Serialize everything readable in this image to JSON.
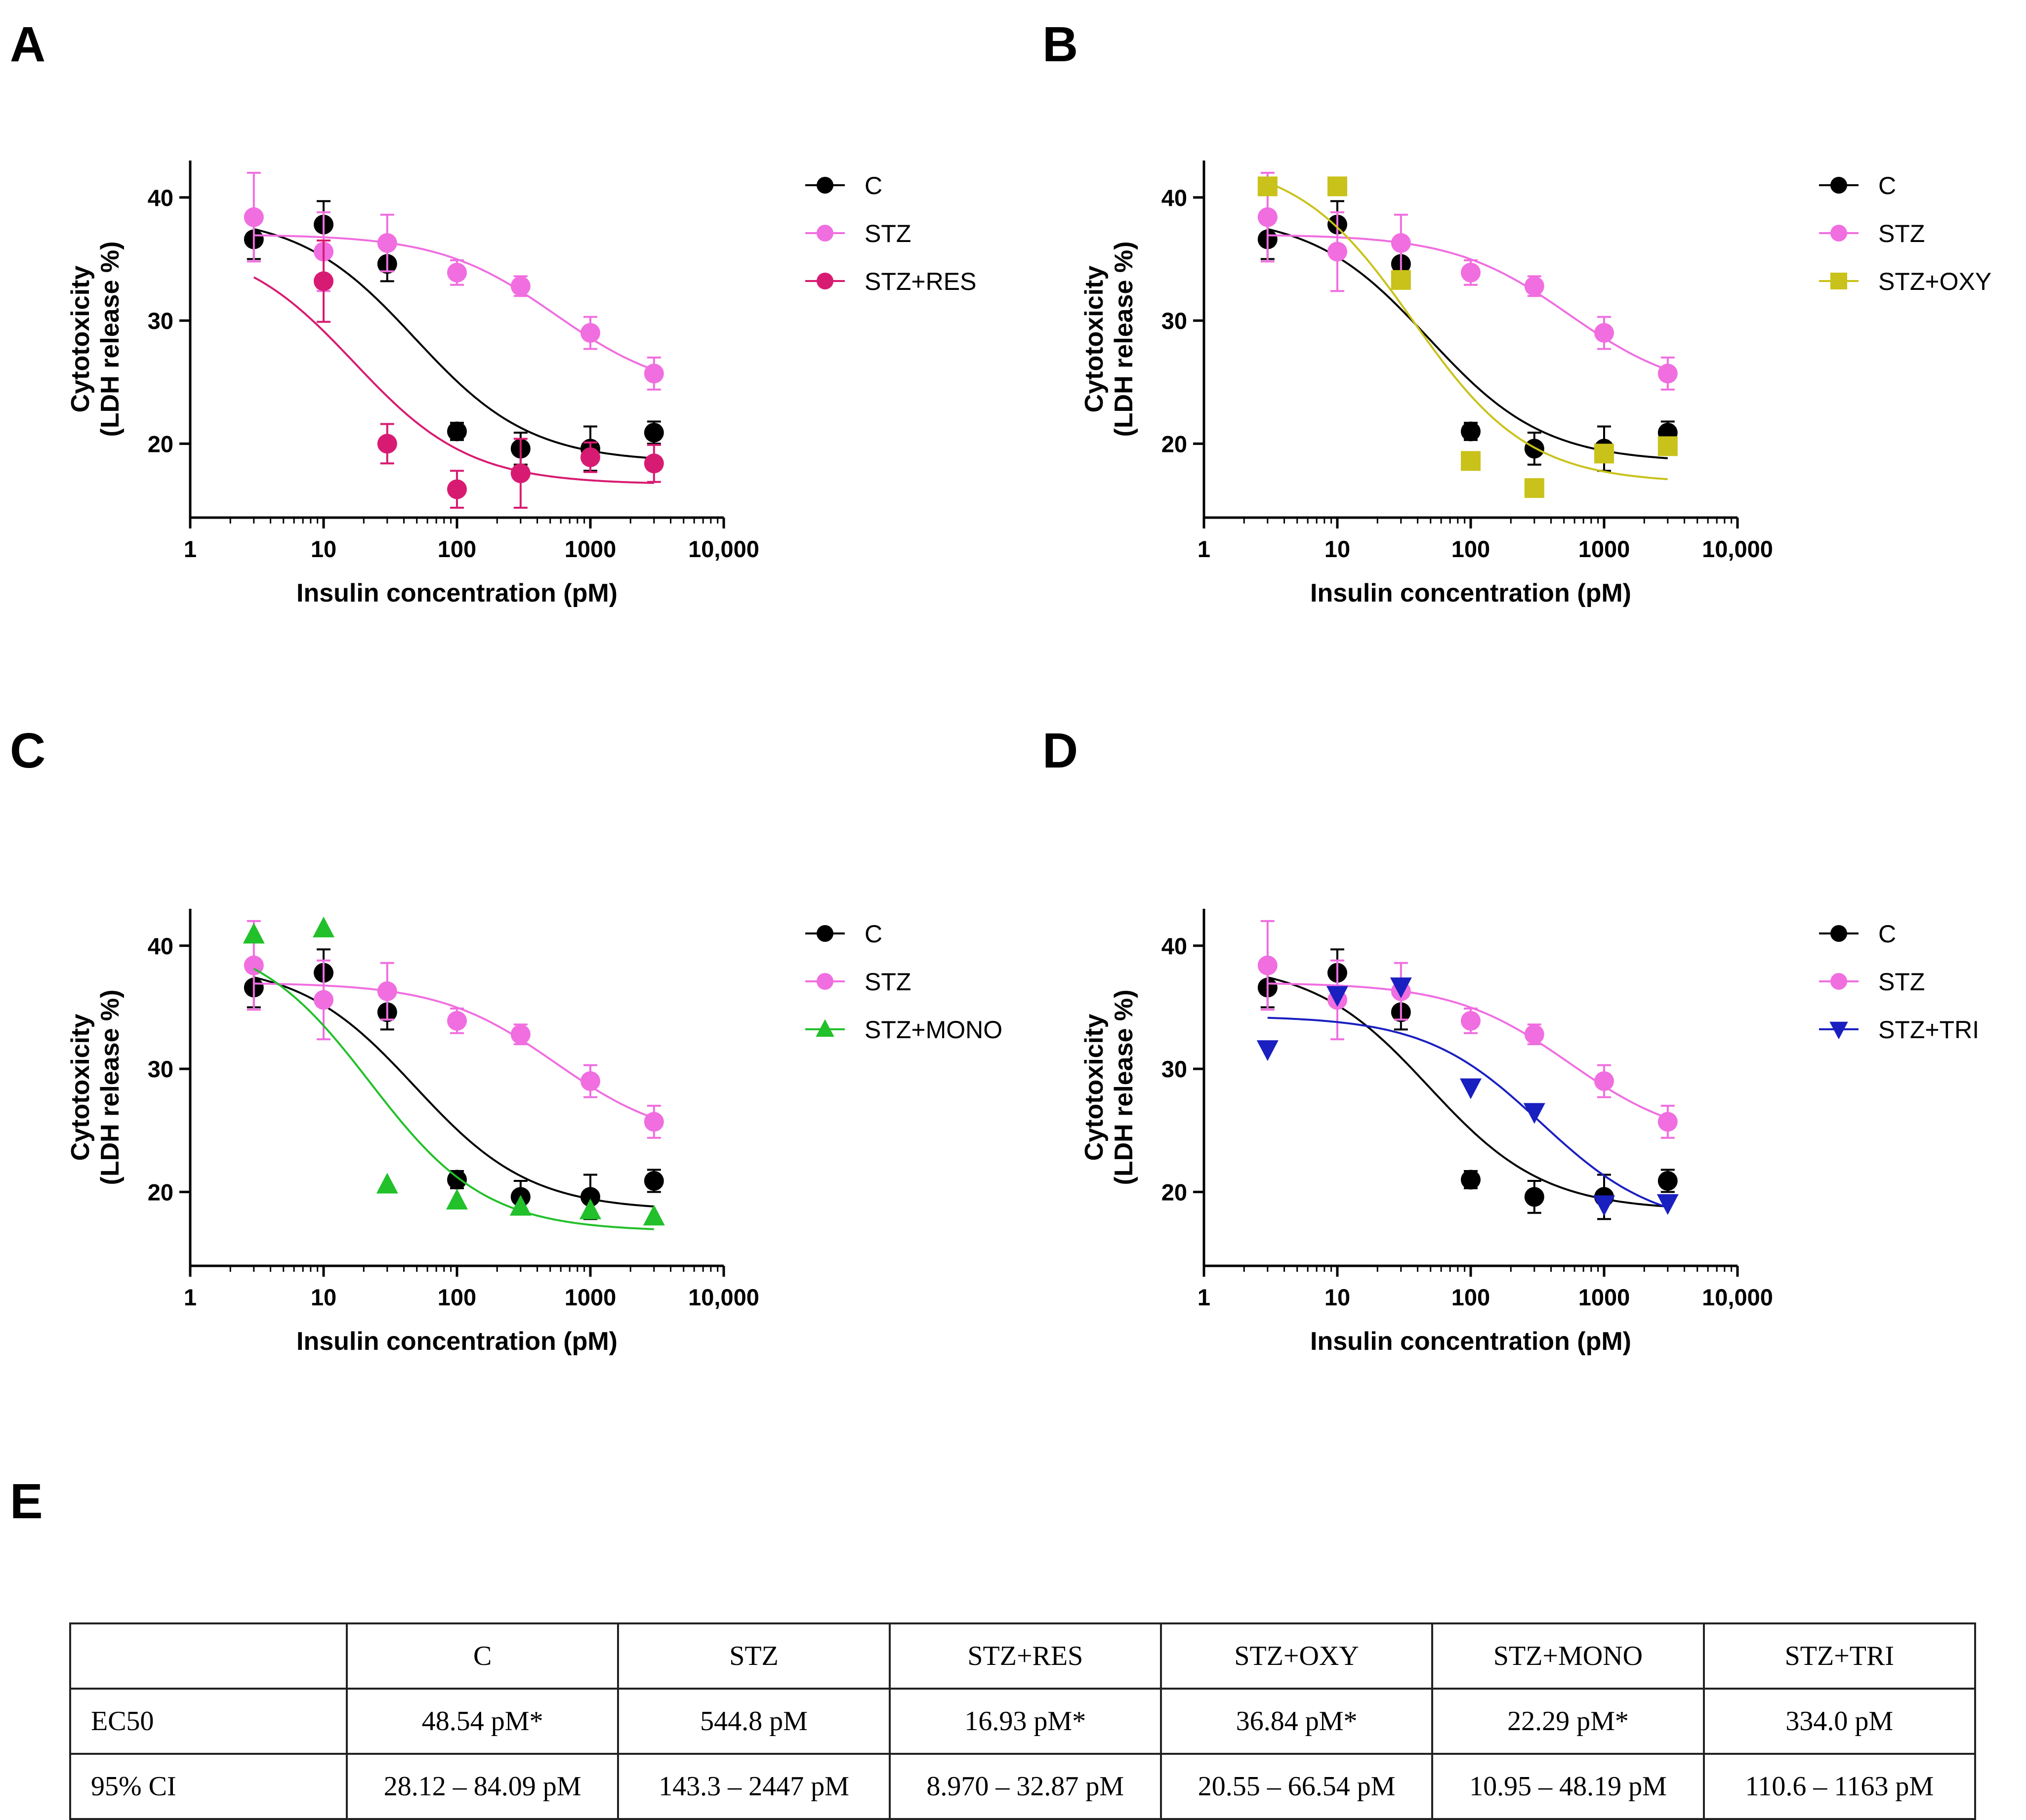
{
  "panels": [
    {
      "label": "A",
      "ylabel": [
        "Cytotoxicity",
        "(LDH release %)"
      ],
      "xlabel": "Insulin concentration (pM)",
      "legend": [
        {
          "name": "C",
          "color": "#000000",
          "marker": "circle"
        },
        {
          "name": "STZ",
          "color": "#f06ee0",
          "marker": "circle"
        },
        {
          "name": "STZ+RES",
          "color": "#d81b72",
          "marker": "circle"
        }
      ]
    },
    {
      "label": "B",
      "ylabel": [
        "Cytotoxicity",
        "(LDH release %)"
      ],
      "xlabel": "Insulin concentration (pM)",
      "legend": [
        {
          "name": "C",
          "color": "#000000",
          "marker": "circle"
        },
        {
          "name": "STZ",
          "color": "#f06ee0",
          "marker": "circle"
        },
        {
          "name": "STZ+OXY",
          "color": "#c9c21a",
          "marker": "square"
        }
      ]
    },
    {
      "label": "C",
      "ylabel": [
        "Cytotoxicity",
        "(LDH release %)"
      ],
      "xlabel": "Insulin concentration (pM)",
      "legend": [
        {
          "name": "C",
          "color": "#000000",
          "marker": "circle"
        },
        {
          "name": "STZ",
          "color": "#f06ee0",
          "marker": "circle"
        },
        {
          "name": "STZ+MONO",
          "color": "#22c02a",
          "marker": "triangle-up"
        }
      ]
    },
    {
      "label": "D",
      "ylabel": [
        "Cytotoxicity",
        "(LDH release %)"
      ],
      "xlabel": "Insulin concentration (pM)",
      "legend": [
        {
          "name": "C",
          "color": "#000000",
          "marker": "circle"
        },
        {
          "name": "STZ",
          "color": "#f06ee0",
          "marker": "circle"
        },
        {
          "name": "STZ+TRI",
          "color": "#1a1fc0",
          "marker": "triangle-down"
        }
      ]
    }
  ],
  "chart_data": [
    {
      "panel": "A",
      "type": "scatter",
      "x_scale": "log",
      "xlim": [
        1,
        10000
      ],
      "ylim": [
        14,
        43
      ],
      "xticks": [
        1,
        10,
        100,
        1000,
        10000
      ],
      "xtick_labels": [
        "1",
        "10",
        "100",
        "1000",
        "10,000"
      ],
      "yticks": [
        20,
        30,
        40
      ],
      "ytick_labels": [
        "20",
        "30",
        "40"
      ],
      "series": [
        {
          "name": "C",
          "x": [
            3,
            10,
            30,
            100,
            300,
            1000,
            3000
          ],
          "y": [
            36.6,
            37.8,
            34.6,
            21.0,
            19.6,
            19.6,
            20.9
          ],
          "err": [
            1.6,
            1.9,
            1.4,
            0.7,
            1.3,
            1.8,
            0.9
          ],
          "fit": {
            "top": 38.6,
            "bottom": 18.5,
            "ec50": 48.54
          }
        },
        {
          "name": "STZ",
          "x": [
            3,
            10,
            30,
            100,
            300,
            1000,
            3000
          ],
          "y": [
            38.4,
            35.6,
            36.3,
            33.9,
            32.8,
            29.0,
            25.7
          ],
          "err": [
            3.6,
            3.2,
            2.3,
            1.0,
            0.8,
            1.3,
            1.3
          ],
          "fit": {
            "top": 37.0,
            "bottom": 24.0,
            "ec50": 544.8
          }
        },
        {
          "name": "STZ+RES",
          "x": [
            3,
            10,
            30,
            100,
            300,
            1000,
            3000
          ],
          "y": [
            null,
            33.2,
            20.0,
            16.3,
            17.6,
            18.9,
            18.4
          ],
          "err": [
            0,
            3.3,
            1.6,
            1.5,
            2.8,
            1.2,
            1.5
          ],
          "fit": {
            "top": 36.5,
            "bottom": 16.7,
            "ec50": 16.93
          }
        }
      ]
    },
    {
      "panel": "B",
      "type": "scatter",
      "x_scale": "log",
      "xlim": [
        1,
        10000
      ],
      "ylim": [
        14,
        43
      ],
      "xticks": [
        1,
        10,
        100,
        1000,
        10000
      ],
      "xtick_labels": [
        "1",
        "10",
        "100",
        "1000",
        "10,000"
      ],
      "yticks": [
        20,
        30,
        40
      ],
      "ytick_labels": [
        "20",
        "30",
        "40"
      ],
      "series": [
        {
          "name": "C",
          "x": [
            3,
            10,
            30,
            100,
            300,
            1000,
            3000
          ],
          "y": [
            36.6,
            37.8,
            34.6,
            21.0,
            19.6,
            19.6,
            20.9
          ],
          "err": [
            1.6,
            1.9,
            1.4,
            0.7,
            1.3,
            1.8,
            0.9
          ],
          "fit": {
            "top": 38.6,
            "bottom": 18.5,
            "ec50": 48.54
          }
        },
        {
          "name": "STZ",
          "x": [
            3,
            10,
            30,
            100,
            300,
            1000,
            3000
          ],
          "y": [
            38.4,
            35.6,
            36.3,
            33.9,
            32.8,
            29.0,
            25.7
          ],
          "err": [
            3.6,
            3.2,
            2.3,
            1.0,
            0.8,
            1.3,
            1.3
          ],
          "fit": {
            "top": 37.0,
            "bottom": 24.0,
            "ec50": 544.8
          }
        },
        {
          "name": "STZ+OXY",
          "x": [
            3,
            10,
            30,
            100,
            300,
            1000,
            3000
          ],
          "y": [
            40.9,
            40.9,
            33.3,
            18.6,
            16.4,
            19.2,
            19.8
          ],
          "err": [
            0,
            0,
            0,
            0,
            0,
            0,
            0
          ],
          "fit": {
            "top": 43.2,
            "bottom": 16.8,
            "ec50": 36.84
          }
        }
      ]
    },
    {
      "panel": "C",
      "type": "scatter",
      "x_scale": "log",
      "xlim": [
        1,
        10000
      ],
      "ylim": [
        14,
        43
      ],
      "xticks": [
        1,
        10,
        100,
        1000,
        10000
      ],
      "xtick_labels": [
        "1",
        "10",
        "100",
        "1000",
        "10,000"
      ],
      "yticks": [
        20,
        30,
        40
      ],
      "ytick_labels": [
        "20",
        "30",
        "40"
      ],
      "series": [
        {
          "name": "C",
          "x": [
            3,
            10,
            30,
            100,
            300,
            1000,
            3000
          ],
          "y": [
            36.6,
            37.8,
            34.6,
            21.0,
            19.6,
            19.6,
            20.9
          ],
          "err": [
            1.6,
            1.9,
            1.4,
            0.7,
            1.3,
            1.8,
            0.9
          ],
          "fit": {
            "top": 38.6,
            "bottom": 18.5,
            "ec50": 48.54
          }
        },
        {
          "name": "STZ",
          "x": [
            3,
            10,
            30,
            100,
            300,
            1000,
            3000
          ],
          "y": [
            38.4,
            35.6,
            36.3,
            33.9,
            32.8,
            29.0,
            25.7
          ],
          "err": [
            3.6,
            3.2,
            2.3,
            1.0,
            0.8,
            1.3,
            1.3
          ],
          "fit": {
            "top": 37.0,
            "bottom": 24.0,
            "ec50": 544.8
          }
        },
        {
          "name": "STZ+MONO",
          "x": [
            3,
            10,
            30,
            100,
            300,
            1000,
            3000
          ],
          "y": [
            40.9,
            41.4,
            20.6,
            19.3,
            18.8,
            18.5,
            18.0
          ],
          "err": [
            0,
            0,
            0,
            0,
            0,
            0,
            0
          ],
          "fit": {
            "top": 41.0,
            "bottom": 16.8,
            "ec50": 22.29
          }
        }
      ]
    },
    {
      "panel": "D",
      "type": "scatter",
      "x_scale": "log",
      "xlim": [
        1,
        10000
      ],
      "ylim": [
        14,
        43
      ],
      "xticks": [
        1,
        10,
        100,
        1000,
        10000
      ],
      "xtick_labels": [
        "1",
        "10",
        "100",
        "1000",
        "10,000"
      ],
      "yticks": [
        20,
        30,
        40
      ],
      "ytick_labels": [
        "20",
        "30",
        "40"
      ],
      "series": [
        {
          "name": "C",
          "x": [
            3,
            10,
            30,
            100,
            300,
            1000,
            3000
          ],
          "y": [
            36.6,
            37.8,
            34.6,
            21.0,
            19.6,
            19.6,
            20.9
          ],
          "err": [
            1.6,
            1.9,
            1.4,
            0.7,
            1.3,
            1.8,
            0.9
          ],
          "fit": {
            "top": 38.6,
            "bottom": 18.5,
            "ec50": 48.54
          }
        },
        {
          "name": "STZ",
          "x": [
            3,
            10,
            30,
            100,
            300,
            1000,
            3000
          ],
          "y": [
            38.4,
            35.6,
            36.3,
            33.9,
            32.8,
            29.0,
            25.7
          ],
          "err": [
            3.6,
            3.2,
            2.3,
            1.0,
            0.8,
            1.3,
            1.3
          ],
          "fit": {
            "top": 37.0,
            "bottom": 24.0,
            "ec50": 544.8
          }
        },
        {
          "name": "STZ+TRI",
          "x": [
            3,
            10,
            30,
            100,
            300,
            1000,
            3000
          ],
          "y": [
            31.6,
            36.0,
            36.7,
            28.5,
            26.5,
            19.0,
            19.1
          ],
          "err": [
            0,
            0,
            0,
            0,
            0,
            0,
            0
          ],
          "fit": {
            "top": 34.3,
            "bottom": 17.0,
            "ec50": 334.0
          }
        }
      ]
    }
  ],
  "table": {
    "label": "E",
    "headers": [
      "",
      "C",
      "STZ",
      "STZ+RES",
      "STZ+OXY",
      "STZ+MONO",
      "STZ+TRI"
    ],
    "rows": [
      {
        "label": "EC50",
        "cells": [
          "48.54 pM*",
          "544.8 pM",
          "16.93 pM*",
          "36.84 pM*",
          "22.29 pM*",
          "334.0 pM"
        ]
      },
      {
        "label": "95% CI",
        "cells": [
          "28.12 – 84.09 pM",
          "143.3 – 2447 pM",
          "8.970 – 32.87 pM",
          "20.55 – 66.54 pM",
          "10.95 – 48.19 pM",
          "110.6 – 1163 pM"
        ]
      }
    ]
  }
}
